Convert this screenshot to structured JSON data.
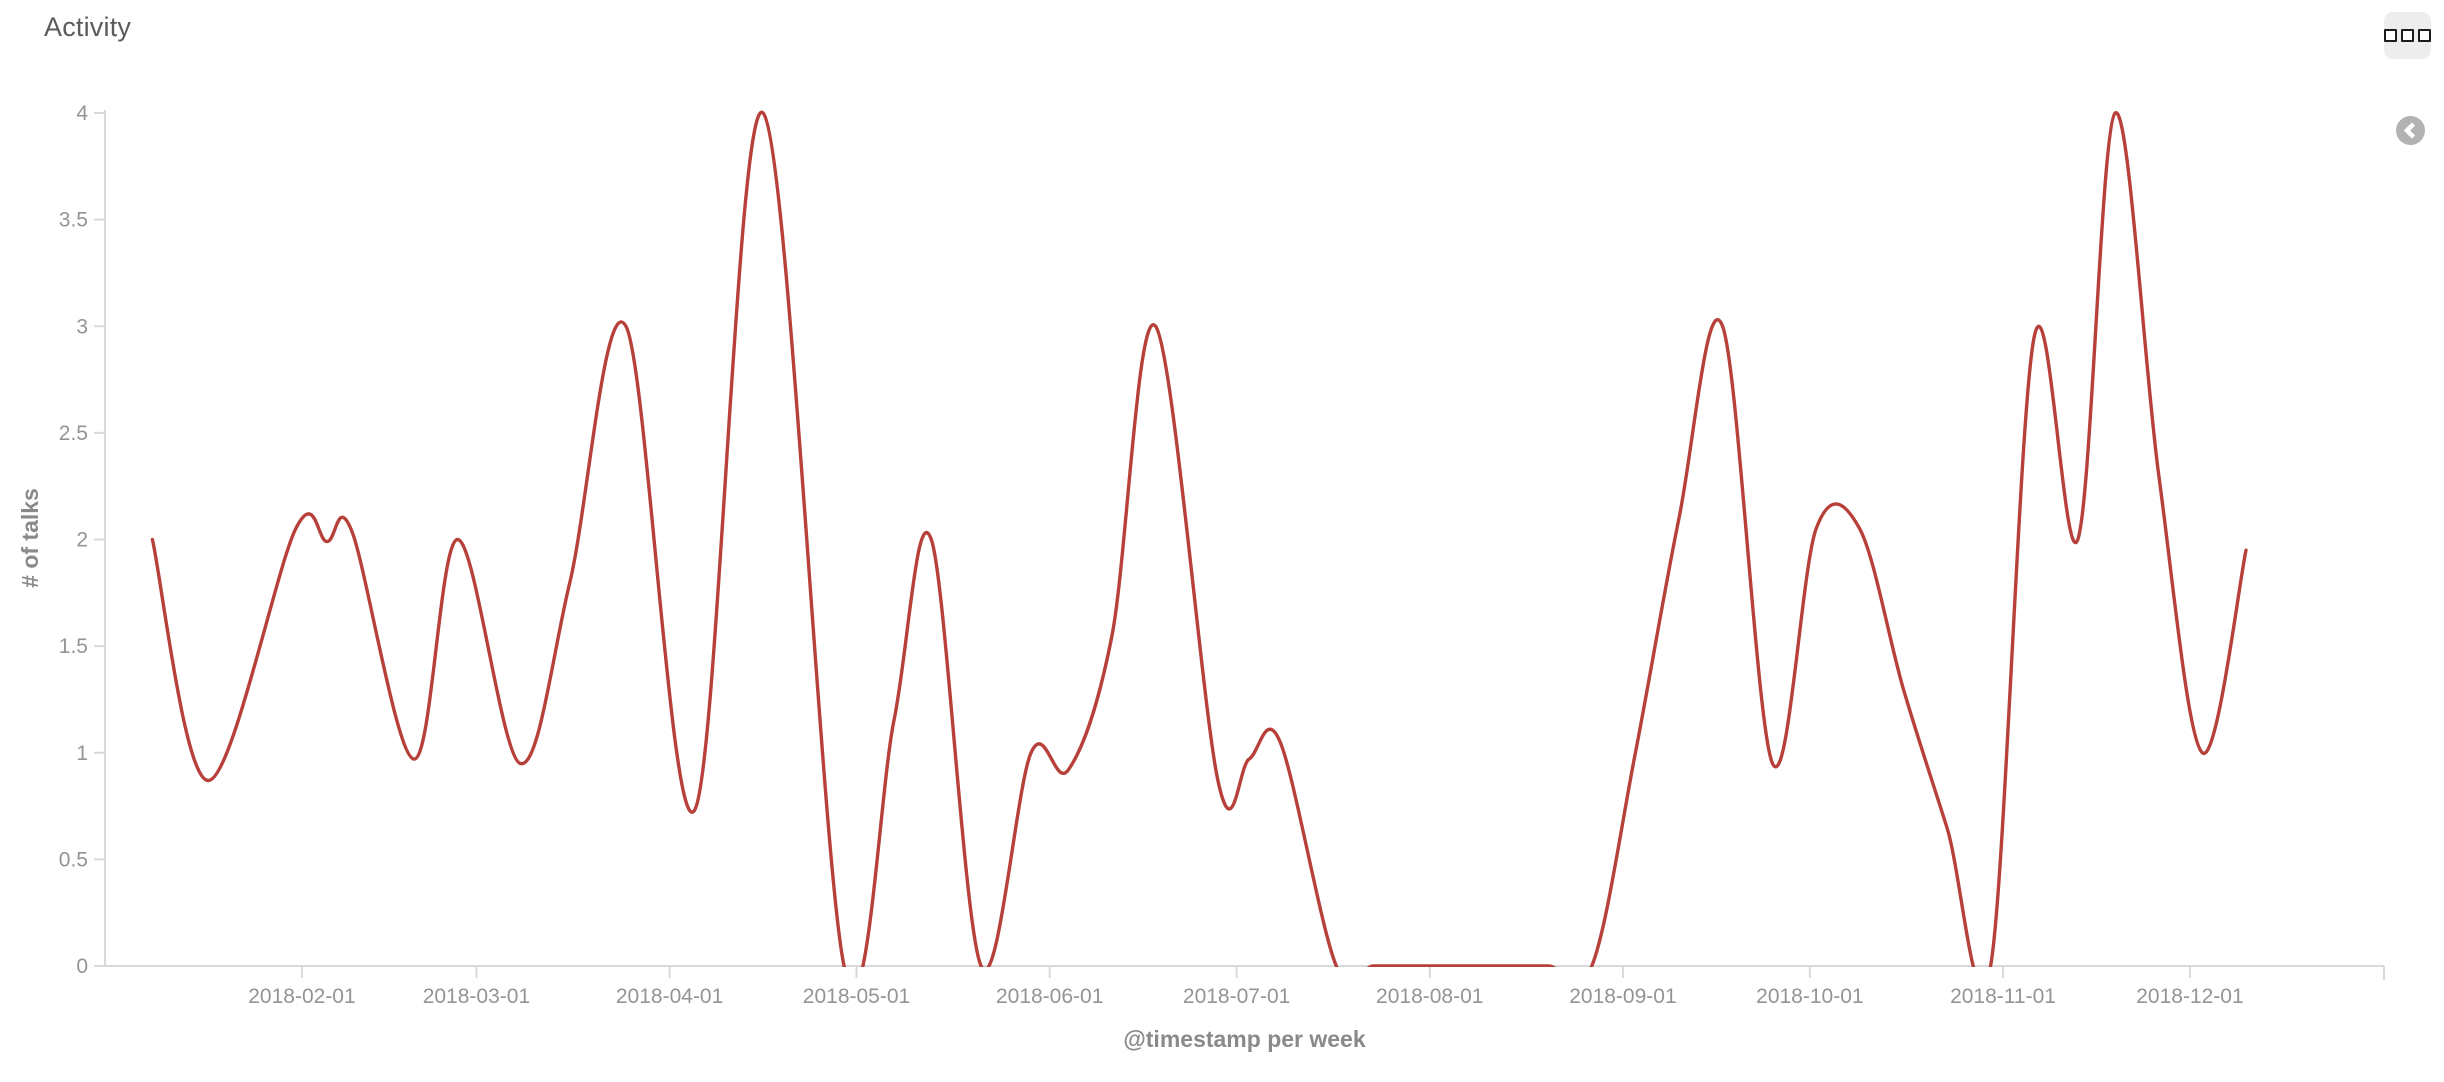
{
  "panel": {
    "title": "Activity",
    "buttons": [
      {
        "name": "panel-options-button",
        "icon": "grid-squares-icon"
      },
      {
        "name": "collapse-panel-button",
        "icon": "chevron-left-icon"
      }
    ]
  },
  "colors": {
    "line": "#b7413a",
    "axis": "#d9d9d9",
    "tick_label": "#949494",
    "axis_title": "#8a8a8a",
    "panel_title": "#5b5b5b",
    "menu_button_bg": "#ededed",
    "collapse_button_bg": "#b2b2b2"
  },
  "chart_data": {
    "type": "line",
    "title": "Activity",
    "xlabel": "@timestamp per week",
    "ylabel": "# of talks",
    "ylim": [
      0,
      4
    ],
    "grid": false,
    "legend": "none",
    "smooth": true,
    "y_ticks": [
      0,
      0.5,
      1,
      1.5,
      2,
      2.5,
      3,
      3.5,
      4
    ],
    "x_tick_labels": [
      "2018-02-01",
      "2018-03-01",
      "2018-04-01",
      "2018-05-01",
      "2018-06-01",
      "2018-07-01",
      "2018-08-01",
      "2018-09-01",
      "2018-10-01",
      "2018-11-01",
      "2018-12-01"
    ],
    "series": [
      {
        "name": "# of talks",
        "color": "#b7413a",
        "points": [
          [
            "2018-01-08",
            2.0
          ],
          [
            "2018-01-17",
            0.87
          ],
          [
            "2018-01-31",
            2.05
          ],
          [
            "2018-02-05",
            1.99
          ],
          [
            "2018-02-09",
            2.04
          ],
          [
            "2018-02-19",
            0.97
          ],
          [
            "2018-02-26",
            2.0
          ],
          [
            "2018-03-08",
            0.95
          ],
          [
            "2018-03-16",
            1.8
          ],
          [
            "2018-03-25",
            3.0
          ],
          [
            "2018-04-05",
            0.73
          ],
          [
            "2018-04-16",
            4.0
          ],
          [
            "2018-04-29",
            0.0
          ],
          [
            "2018-05-07",
            1.15
          ],
          [
            "2018-05-13",
            2.0
          ],
          [
            "2018-05-21",
            0.0
          ],
          [
            "2018-05-29",
            1.0
          ],
          [
            "2018-06-04",
            0.92
          ],
          [
            "2018-06-11",
            1.55
          ],
          [
            "2018-06-18",
            3.0
          ],
          [
            "2018-06-28",
            0.87
          ],
          [
            "2018-07-03",
            0.97
          ],
          [
            "2018-07-08",
            1.05
          ],
          [
            "2018-07-17",
            0.0
          ],
          [
            "2018-07-23",
            0.0
          ],
          [
            "2018-07-30",
            0.0
          ],
          [
            "2018-08-06",
            0.0
          ],
          [
            "2018-08-13",
            0.0
          ],
          [
            "2018-08-20",
            0.0
          ],
          [
            "2018-08-27",
            0.0
          ],
          [
            "2018-09-03",
            1.0
          ],
          [
            "2018-09-10",
            2.1
          ],
          [
            "2018-09-17",
            3.0
          ],
          [
            "2018-09-25",
            0.95
          ],
          [
            "2018-10-02",
            2.05
          ],
          [
            "2018-10-09",
            2.05
          ],
          [
            "2018-10-16",
            1.3
          ],
          [
            "2018-10-23",
            0.65
          ],
          [
            "2018-10-30",
            0.0
          ],
          [
            "2018-11-06",
            2.95
          ],
          [
            "2018-11-13",
            2.0
          ],
          [
            "2018-11-19",
            4.0
          ],
          [
            "2018-11-26",
            2.3
          ],
          [
            "2018-12-03",
            1.0
          ],
          [
            "2018-12-10",
            1.95
          ]
        ]
      }
    ]
  }
}
